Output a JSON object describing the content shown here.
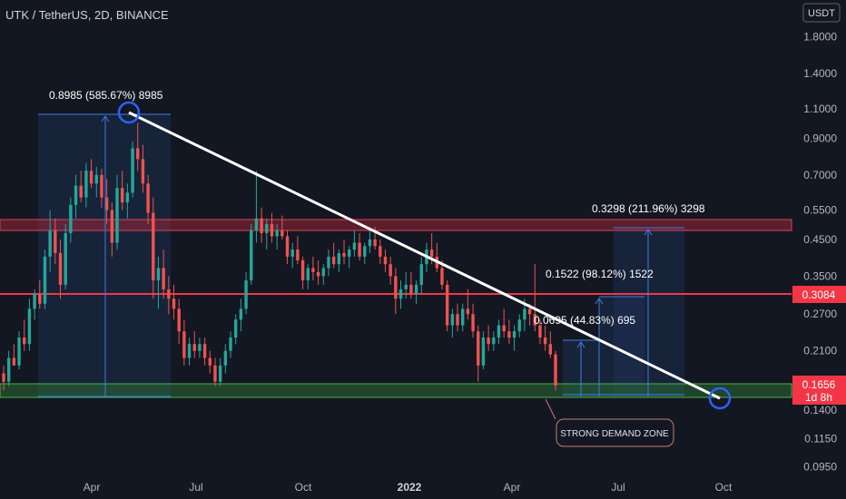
{
  "header": {
    "title": "UTK / TetherUS, 2D, BINANCE"
  },
  "chart_data": {
    "type": "candlestick",
    "symbol": "UTK / TetherUS",
    "interval": "2D",
    "exchange": "BINANCE",
    "scale": "log",
    "currency_badge": "USDT",
    "price_axis_ticks": [
      1.8,
      1.4,
      1.1,
      0.9,
      0.7,
      0.55,
      0.45,
      0.35,
      0.27,
      0.21,
      0.14,
      0.115,
      0.095
    ],
    "price_axis_labels": [
      "1.8000",
      "1.4000",
      "1.1000",
      "0.9000",
      "0.7000",
      "0.5500",
      "0.4500",
      "0.3500",
      "0.2700",
      "0.2100",
      "0.1400",
      "0.1150",
      "0.0950"
    ],
    "time_axis_labels": [
      "Apr",
      "Jul",
      "Oct",
      "2022",
      "Apr",
      "Jul",
      "Oct"
    ],
    "current_price": {
      "value": "0.1656",
      "countdown": "1d 8h",
      "color": "#f23645"
    },
    "horizontal_level": {
      "value": "0.3084",
      "color": "#f23645"
    },
    "resistance_zone": {
      "low": 0.47,
      "high": 0.51,
      "color": "#b2283a"
    },
    "demand_zone": {
      "low": 0.148,
      "high": 0.165,
      "color": "#2e7d32",
      "label": "STRONG DEMAND ZONE"
    },
    "trendline": {
      "from_price": 1.05,
      "to_price": 0.148,
      "color": "#ffffff"
    },
    "measurements": [
      {
        "text": "0.8985 (585.67%) 8985",
        "from": 0.153,
        "to": 1.05
      },
      {
        "text": "0.3298 (211.96%) 3298",
        "from": 0.153,
        "to": 0.48
      },
      {
        "text": "0.1522 (98.12%) 1522",
        "from": 0.153,
        "to": 0.3
      },
      {
        "text": "0.0695 (44.83%) 695",
        "from": 0.153,
        "to": 0.22
      }
    ],
    "colors": {
      "up": "#26a69a",
      "down": "#ef5350",
      "background": "#131722",
      "axis_text": "#b2b5be"
    },
    "candles": [
      [
        0.18,
        0.19,
        0.16,
        0.17
      ],
      [
        0.17,
        0.21,
        0.165,
        0.2
      ],
      [
        0.2,
        0.22,
        0.19,
        0.19
      ],
      [
        0.19,
        0.24,
        0.185,
        0.23
      ],
      [
        0.23,
        0.26,
        0.21,
        0.22
      ],
      [
        0.22,
        0.3,
        0.21,
        0.28
      ],
      [
        0.28,
        0.32,
        0.26,
        0.31
      ],
      [
        0.31,
        0.34,
        0.28,
        0.29
      ],
      [
        0.29,
        0.42,
        0.28,
        0.4
      ],
      [
        0.4,
        0.55,
        0.36,
        0.48
      ],
      [
        0.48,
        0.52,
        0.38,
        0.41
      ],
      [
        0.41,
        0.45,
        0.3,
        0.33
      ],
      [
        0.33,
        0.5,
        0.32,
        0.47
      ],
      [
        0.47,
        0.6,
        0.44,
        0.57
      ],
      [
        0.57,
        0.7,
        0.52,
        0.65
      ],
      [
        0.65,
        0.72,
        0.58,
        0.6
      ],
      [
        0.6,
        0.76,
        0.56,
        0.72
      ],
      [
        0.72,
        0.78,
        0.64,
        0.66
      ],
      [
        0.66,
        0.74,
        0.6,
        0.7
      ],
      [
        0.7,
        0.73,
        0.56,
        0.6
      ],
      [
        0.6,
        0.68,
        0.5,
        0.55
      ],
      [
        0.55,
        0.58,
        0.4,
        0.44
      ],
      [
        0.44,
        0.7,
        0.42,
        0.64
      ],
      [
        0.64,
        0.72,
        0.55,
        0.58
      ],
      [
        0.58,
        0.66,
        0.52,
        0.62
      ],
      [
        0.62,
        0.88,
        0.6,
        0.84
      ],
      [
        0.84,
        1.0,
        0.72,
        0.78
      ],
      [
        0.78,
        0.86,
        0.62,
        0.66
      ],
      [
        0.66,
        0.7,
        0.5,
        0.54
      ],
      [
        0.54,
        0.6,
        0.3,
        0.34
      ],
      [
        0.34,
        0.4,
        0.28,
        0.37
      ],
      [
        0.37,
        0.42,
        0.3,
        0.32
      ],
      [
        0.32,
        0.35,
        0.27,
        0.3
      ],
      [
        0.3,
        0.33,
        0.26,
        0.28
      ],
      [
        0.28,
        0.3,
        0.22,
        0.24
      ],
      [
        0.24,
        0.26,
        0.19,
        0.2
      ],
      [
        0.2,
        0.23,
        0.19,
        0.22
      ],
      [
        0.22,
        0.24,
        0.2,
        0.21
      ],
      [
        0.21,
        0.23,
        0.2,
        0.22
      ],
      [
        0.22,
        0.23,
        0.19,
        0.2
      ],
      [
        0.2,
        0.21,
        0.18,
        0.19
      ],
      [
        0.19,
        0.2,
        0.165,
        0.17
      ],
      [
        0.17,
        0.2,
        0.165,
        0.19
      ],
      [
        0.19,
        0.22,
        0.18,
        0.21
      ],
      [
        0.21,
        0.24,
        0.2,
        0.23
      ],
      [
        0.23,
        0.27,
        0.22,
        0.26
      ],
      [
        0.26,
        0.3,
        0.24,
        0.28
      ],
      [
        0.28,
        0.36,
        0.27,
        0.34
      ],
      [
        0.34,
        0.5,
        0.33,
        0.48
      ],
      [
        0.48,
        0.72,
        0.44,
        0.52
      ],
      [
        0.52,
        0.56,
        0.44,
        0.47
      ],
      [
        0.47,
        0.52,
        0.42,
        0.5
      ],
      [
        0.5,
        0.54,
        0.44,
        0.46
      ],
      [
        0.46,
        0.5,
        0.42,
        0.48
      ],
      [
        0.48,
        0.53,
        0.45,
        0.46
      ],
      [
        0.46,
        0.48,
        0.38,
        0.4
      ],
      [
        0.4,
        0.44,
        0.37,
        0.42
      ],
      [
        0.42,
        0.46,
        0.38,
        0.39
      ],
      [
        0.39,
        0.4,
        0.32,
        0.34
      ],
      [
        0.34,
        0.38,
        0.32,
        0.37
      ],
      [
        0.37,
        0.4,
        0.34,
        0.36
      ],
      [
        0.36,
        0.39,
        0.33,
        0.35
      ],
      [
        0.35,
        0.38,
        0.33,
        0.37
      ],
      [
        0.37,
        0.42,
        0.35,
        0.4
      ],
      [
        0.4,
        0.44,
        0.37,
        0.38
      ],
      [
        0.38,
        0.42,
        0.36,
        0.41
      ],
      [
        0.41,
        0.45,
        0.38,
        0.4
      ],
      [
        0.4,
        0.43,
        0.37,
        0.42
      ],
      [
        0.42,
        0.48,
        0.4,
        0.44
      ],
      [
        0.44,
        0.47,
        0.39,
        0.4
      ],
      [
        0.4,
        0.44,
        0.38,
        0.43
      ],
      [
        0.43,
        0.48,
        0.41,
        0.45
      ],
      [
        0.45,
        0.49,
        0.42,
        0.43
      ],
      [
        0.43,
        0.45,
        0.38,
        0.4
      ],
      [
        0.4,
        0.42,
        0.36,
        0.38
      ],
      [
        0.38,
        0.4,
        0.33,
        0.35
      ],
      [
        0.35,
        0.37,
        0.27,
        0.3
      ],
      [
        0.3,
        0.34,
        0.28,
        0.32
      ],
      [
        0.32,
        0.36,
        0.3,
        0.33
      ],
      [
        0.33,
        0.36,
        0.3,
        0.31
      ],
      [
        0.31,
        0.34,
        0.29,
        0.33
      ],
      [
        0.33,
        0.4,
        0.31,
        0.38
      ],
      [
        0.38,
        0.44,
        0.36,
        0.42
      ],
      [
        0.42,
        0.47,
        0.38,
        0.4
      ],
      [
        0.4,
        0.44,
        0.36,
        0.37
      ],
      [
        0.37,
        0.39,
        0.32,
        0.33
      ],
      [
        0.33,
        0.34,
        0.24,
        0.25
      ],
      [
        0.25,
        0.28,
        0.23,
        0.27
      ],
      [
        0.27,
        0.29,
        0.24,
        0.25
      ],
      [
        0.25,
        0.29,
        0.24,
        0.28
      ],
      [
        0.28,
        0.32,
        0.26,
        0.27
      ],
      [
        0.27,
        0.29,
        0.23,
        0.24
      ],
      [
        0.24,
        0.25,
        0.17,
        0.19
      ],
      [
        0.19,
        0.24,
        0.185,
        0.23
      ],
      [
        0.23,
        0.25,
        0.21,
        0.22
      ],
      [
        0.22,
        0.24,
        0.21,
        0.23
      ],
      [
        0.23,
        0.26,
        0.22,
        0.25
      ],
      [
        0.25,
        0.28,
        0.23,
        0.24
      ],
      [
        0.24,
        0.26,
        0.22,
        0.23
      ],
      [
        0.23,
        0.25,
        0.21,
        0.24
      ],
      [
        0.24,
        0.27,
        0.23,
        0.26
      ],
      [
        0.26,
        0.3,
        0.24,
        0.28
      ],
      [
        0.28,
        0.29,
        0.25,
        0.27
      ],
      [
        0.27,
        0.38,
        0.24,
        0.25
      ],
      [
        0.25,
        0.26,
        0.22,
        0.23
      ],
      [
        0.23,
        0.25,
        0.21,
        0.22
      ],
      [
        0.22,
        0.24,
        0.2,
        0.205
      ],
      [
        0.205,
        0.21,
        0.16,
        0.1656
      ]
    ]
  }
}
